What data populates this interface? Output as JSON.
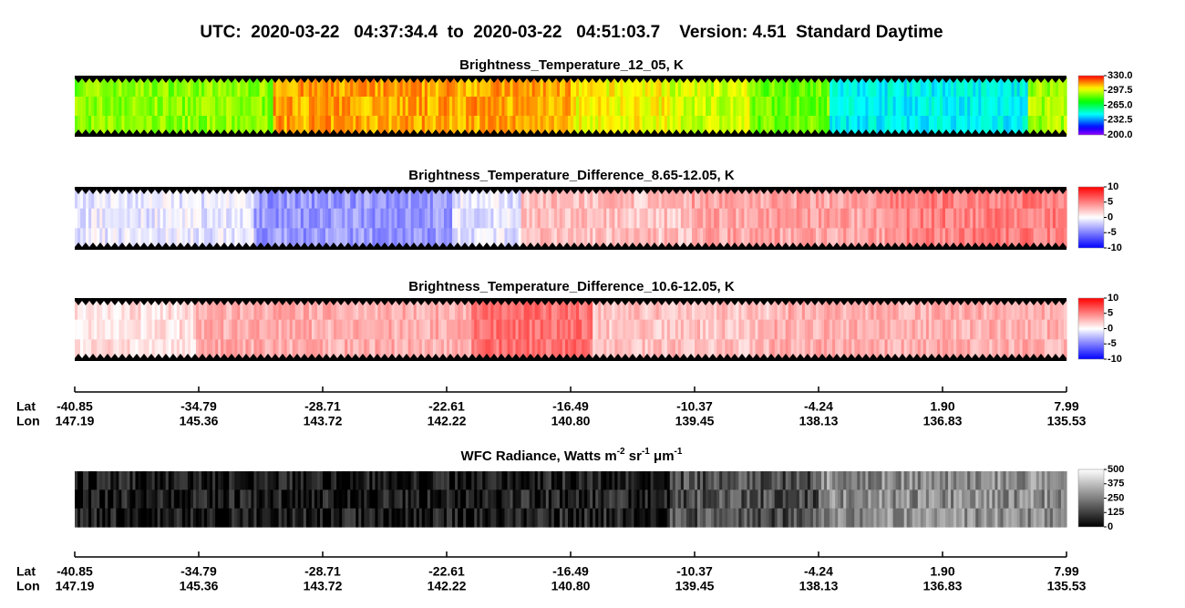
{
  "title": "UTC:  2020-03-22   04:37:34.4  to  2020-03-22   04:51:03.7    Version: 4.51  Standard Daytime",
  "chart_data": [
    {
      "type": "heatmap",
      "title": "Brightness_Temperature_12_05, K",
      "colormap": "rainbow",
      "clim": [
        200,
        330
      ],
      "cticks": [
        {
          "value": 330,
          "label": "330.0"
        },
        {
          "value": 297.5,
          "label": "297.5"
        },
        {
          "value": 265,
          "label": "265.0"
        },
        {
          "value": 232.5,
          "label": "232.5"
        },
        {
          "value": 200,
          "label": "200.0"
        }
      ]
    },
    {
      "type": "heatmap",
      "title": "Brightness_Temperature_Difference_8.65-12.05, K",
      "colormap": "bwr",
      "clim": [
        -10,
        10
      ],
      "cticks": [
        10,
        5,
        0,
        -5,
        -10
      ]
    },
    {
      "type": "heatmap",
      "title": "Brightness_Temperature_Difference_10.6-12.05, K",
      "colormap": "bwr",
      "clim": [
        -10,
        10
      ],
      "cticks": [
        10,
        5,
        0,
        -5,
        -10
      ]
    },
    {
      "type": "heatmap",
      "title_parts": [
        "WFC Radiance, Watts m",
        "-2",
        " sr",
        "-1",
        " μm",
        "-1"
      ],
      "colormap": "gray",
      "clim": [
        0,
        500
      ],
      "cticks": [
        500,
        375,
        250,
        125,
        0
      ]
    }
  ],
  "track_axis": {
    "lat_label": "Lat",
    "lon_label": "Lon",
    "lat": [
      -40.85,
      -34.79,
      -28.71,
      -22.61,
      -16.49,
      -10.37,
      -4.24,
      {
        "value": 1.9,
        "label": "1.90"
      },
      7.99
    ],
    "lon": [
      147.19,
      145.36,
      143.72,
      142.22,
      {
        "value": 140.8,
        "label": "140.80"
      },
      139.45,
      138.13,
      136.83,
      135.53
    ]
  }
}
